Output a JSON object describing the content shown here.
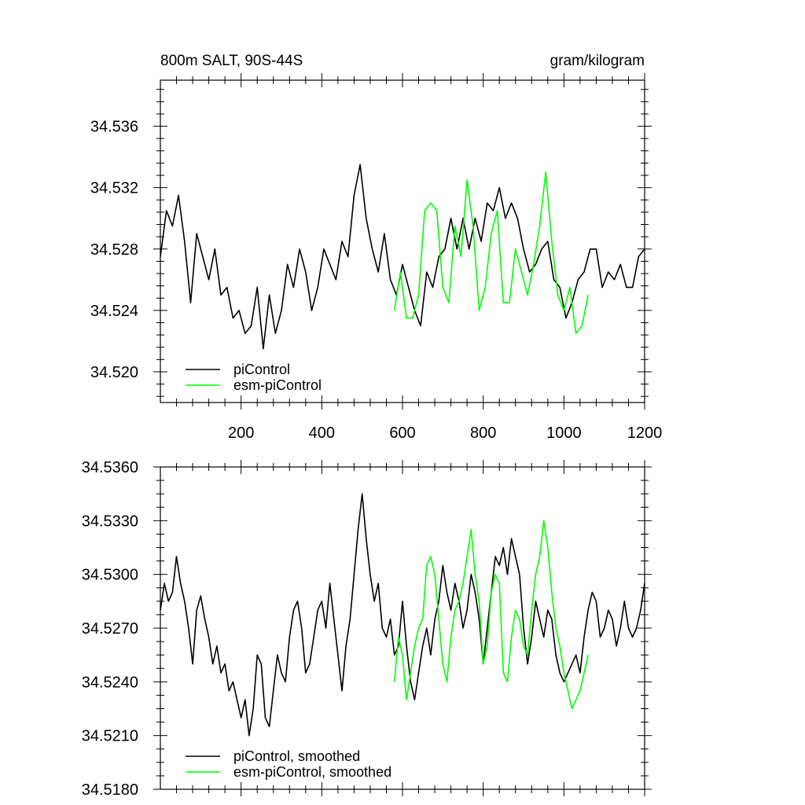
{
  "chart_data": [
    {
      "type": "line",
      "title_left": "800m SALT, 90S-44S",
      "title_right": "gram/kilogram",
      "xlim": [
        0,
        1200
      ],
      "ylim": [
        34.518,
        34.539
      ],
      "xticks": [
        200,
        400,
        600,
        800,
        1000,
        1200
      ],
      "xtick_labels": [
        "200",
        "400",
        "600",
        "800",
        "1000",
        "1200"
      ],
      "yticks": [
        34.52,
        34.524,
        34.528,
        34.532,
        34.536
      ],
      "ytick_labels": [
        "34.520",
        "34.524",
        "34.528",
        "34.532",
        "34.536"
      ],
      "legend_position": "bottom-left",
      "series": [
        {
          "name": "piControl",
          "color": "#000000",
          "x": [
            0,
            15,
            30,
            45,
            60,
            75,
            90,
            105,
            120,
            135,
            150,
            165,
            180,
            195,
            210,
            225,
            240,
            255,
            270,
            285,
            300,
            315,
            330,
            345,
            360,
            375,
            390,
            405,
            420,
            435,
            450,
            465,
            480,
            495,
            510,
            525,
            540,
            555,
            570,
            585,
            600,
            615,
            630,
            645,
            660,
            675,
            690,
            705,
            720,
            735,
            750,
            765,
            780,
            795,
            810,
            825,
            840,
            855,
            870,
            885,
            900,
            915,
            930,
            945,
            960,
            975,
            990,
            1005,
            1020,
            1035,
            1050,
            1065,
            1080,
            1095,
            1110,
            1125,
            1140,
            1155,
            1170,
            1185,
            1200
          ],
          "y": [
            34.5275,
            34.5305,
            34.5295,
            34.5315,
            34.5285,
            34.5245,
            34.529,
            34.5275,
            34.526,
            34.528,
            34.525,
            34.5255,
            34.5235,
            34.524,
            34.5225,
            34.523,
            34.5255,
            34.5215,
            34.525,
            34.5225,
            34.524,
            34.527,
            34.5255,
            34.528,
            34.5265,
            34.524,
            34.5255,
            34.528,
            34.527,
            34.526,
            34.5285,
            34.5275,
            34.5315,
            34.5335,
            34.53,
            34.528,
            34.5265,
            34.529,
            34.526,
            34.525,
            34.527,
            34.5255,
            34.524,
            34.523,
            34.5265,
            34.5255,
            34.5275,
            34.528,
            34.53,
            34.528,
            34.53,
            34.528,
            34.53,
            34.5285,
            34.531,
            34.5305,
            34.532,
            34.53,
            34.531,
            34.53,
            34.528,
            34.5265,
            34.527,
            34.528,
            34.5285,
            34.526,
            34.5255,
            34.5235,
            34.5245,
            34.526,
            34.5265,
            34.528,
            34.528,
            34.5255,
            34.5265,
            34.526,
            34.527,
            34.5255,
            34.5255,
            34.5275,
            34.528
          ]
        },
        {
          "name": "esm-piControl",
          "color": "#00ff00",
          "x": [
            580,
            595,
            610,
            625,
            640,
            655,
            670,
            685,
            700,
            715,
            730,
            745,
            760,
            775,
            790,
            805,
            820,
            835,
            850,
            865,
            880,
            895,
            910,
            925,
            940,
            955,
            970,
            985,
            1000,
            1015,
            1030,
            1045,
            1060
          ],
          "y": [
            34.524,
            34.5265,
            34.5235,
            34.5235,
            34.525,
            34.5305,
            34.531,
            34.5305,
            34.5255,
            34.5245,
            34.5295,
            34.5275,
            34.5325,
            34.5295,
            34.524,
            34.5255,
            34.529,
            34.5305,
            34.5245,
            34.5245,
            34.528,
            34.5265,
            34.525,
            34.527,
            34.5295,
            34.533,
            34.5285,
            34.525,
            34.524,
            34.5255,
            34.5225,
            34.523,
            34.525
          ]
        }
      ]
    },
    {
      "type": "line",
      "xlim": [
        0,
        1200
      ],
      "ylim": [
        34.518,
        34.536
      ],
      "xticks": [
        200,
        400,
        600,
        800,
        1000,
        1200
      ],
      "yticks": [
        34.518,
        34.521,
        34.524,
        34.527,
        34.53,
        34.533,
        34.536
      ],
      "ytick_labels": [
        "34.5180",
        "34.5210",
        "34.5240",
        "34.5270",
        "34.5300",
        "34.5330",
        "34.5360"
      ],
      "legend_position": "bottom-left",
      "series": [
        {
          "name": "piControl, smoothed",
          "color": "#000000",
          "x": [
            0,
            10,
            20,
            30,
            40,
            50,
            60,
            70,
            80,
            90,
            100,
            110,
            120,
            130,
            140,
            150,
            160,
            170,
            180,
            190,
            200,
            210,
            220,
            230,
            240,
            250,
            260,
            270,
            280,
            290,
            300,
            310,
            320,
            330,
            340,
            350,
            360,
            370,
            380,
            390,
            400,
            410,
            420,
            430,
            440,
            450,
            460,
            470,
            480,
            490,
            500,
            510,
            520,
            530,
            540,
            550,
            560,
            570,
            580,
            590,
            600,
            610,
            620,
            630,
            640,
            650,
            660,
            670,
            680,
            690,
            700,
            710,
            720,
            730,
            740,
            750,
            760,
            770,
            780,
            790,
            800,
            810,
            820,
            830,
            840,
            850,
            860,
            870,
            880,
            890,
            900,
            910,
            920,
            930,
            940,
            950,
            960,
            970,
            980,
            990,
            1000,
            1010,
            1020,
            1030,
            1040,
            1050,
            1060,
            1070,
            1080,
            1090,
            1100,
            1110,
            1120,
            1130,
            1140,
            1150,
            1160,
            1170,
            1180,
            1190,
            1200
          ],
          "y": [
            34.528,
            34.5295,
            34.5285,
            34.529,
            34.531,
            34.5295,
            34.5285,
            34.527,
            34.525,
            34.528,
            34.5288,
            34.5275,
            34.5265,
            34.525,
            34.526,
            34.5245,
            34.525,
            34.5235,
            34.524,
            34.523,
            34.522,
            34.523,
            34.521,
            34.5225,
            34.5255,
            34.525,
            34.522,
            34.5215,
            34.5235,
            34.5255,
            34.5245,
            34.524,
            34.5265,
            34.528,
            34.5285,
            34.527,
            34.5245,
            34.525,
            34.5265,
            34.528,
            34.5285,
            34.527,
            34.5295,
            34.5275,
            34.5255,
            34.5235,
            34.526,
            34.5275,
            34.53,
            34.5325,
            34.5345,
            34.532,
            34.53,
            34.5285,
            34.5295,
            34.527,
            34.5265,
            34.5275,
            34.5255,
            34.526,
            34.5285,
            34.526,
            34.524,
            34.523,
            34.5245,
            34.526,
            34.527,
            34.5255,
            34.5275,
            34.5285,
            34.5305,
            34.529,
            34.528,
            34.5295,
            34.5285,
            34.527,
            34.528,
            34.53,
            34.529,
            34.5275,
            34.525,
            34.527,
            34.529,
            34.531,
            34.5305,
            34.5315,
            34.53,
            34.532,
            34.531,
            34.53,
            34.527,
            34.525,
            34.5265,
            34.5285,
            34.5275,
            34.5265,
            34.528,
            34.5275,
            34.5255,
            34.5245,
            34.524,
            34.5245,
            34.525,
            34.5255,
            34.5245,
            34.5265,
            34.528,
            34.529,
            34.5285,
            34.5265,
            34.527,
            34.528,
            34.5275,
            34.526,
            34.527,
            34.5285,
            34.527,
            34.5265,
            34.527,
            34.528,
            34.5295
          ]
        },
        {
          "name": "esm-piControl, smoothed",
          "color": "#00ff00",
          "x": [
            580,
            590,
            600,
            610,
            620,
            630,
            640,
            650,
            660,
            670,
            680,
            690,
            700,
            710,
            720,
            730,
            740,
            750,
            760,
            770,
            780,
            790,
            800,
            810,
            820,
            830,
            840,
            850,
            860,
            870,
            880,
            890,
            900,
            910,
            920,
            930,
            940,
            950,
            960,
            970,
            980,
            990,
            1000,
            1010,
            1020,
            1030,
            1040,
            1050,
            1060
          ],
          "y": [
            34.524,
            34.5265,
            34.5255,
            34.523,
            34.5245,
            34.526,
            34.527,
            34.5275,
            34.5305,
            34.531,
            34.53,
            34.5275,
            34.525,
            34.524,
            34.5265,
            34.528,
            34.5285,
            34.5295,
            34.531,
            34.5325,
            34.53,
            34.5285,
            34.525,
            34.526,
            34.529,
            34.53,
            34.5295,
            34.5245,
            34.524,
            34.5265,
            34.528,
            34.5275,
            34.526,
            34.5255,
            34.528,
            34.53,
            34.531,
            34.533,
            34.5315,
            34.529,
            34.527,
            34.526,
            34.5245,
            34.5235,
            34.5225,
            34.523,
            34.5235,
            34.5245,
            34.5255
          ]
        }
      ]
    }
  ]
}
